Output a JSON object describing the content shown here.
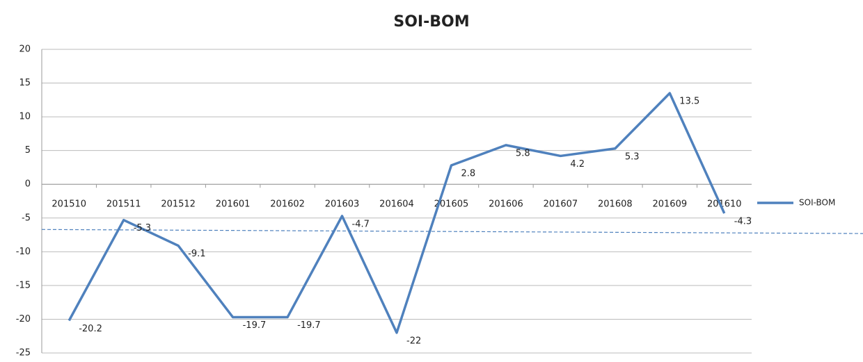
{
  "chart_data": {
    "type": "line",
    "title": "SOI-BOM",
    "categories": [
      "201510",
      "201511",
      "201512",
      "201601",
      "201602",
      "201603",
      "201604",
      "201605",
      "201606",
      "201607",
      "201608",
      "201609",
      "201610"
    ],
    "series": [
      {
        "name": "SOI-BOM",
        "color": "#4f81bd",
        "values": [
          -20.2,
          -5.3,
          -9.1,
          -19.7,
          -19.7,
          -4.7,
          -22,
          2.8,
          5.8,
          4.2,
          5.3,
          13.5,
          -4.3
        ]
      }
    ],
    "reference_line": [
      -6.7,
      -7.3
    ],
    "ylim": [
      -25,
      20
    ],
    "yticks": [
      -25,
      -20,
      -15,
      -10,
      -5,
      0,
      5,
      10,
      15,
      20
    ],
    "grid": true,
    "legend": "right"
  }
}
